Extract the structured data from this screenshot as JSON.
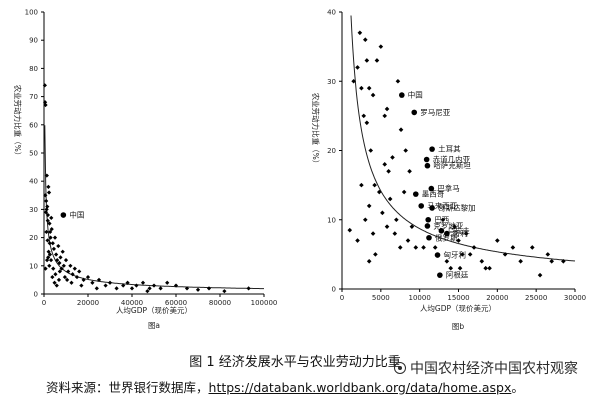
{
  "caption": "图 1  经济发展水平与农业劳动力比重",
  "source": {
    "prefix": "资料来源：世界银行数据库，",
    "url": "https://databank.worldbank.org/data/home.aspx",
    "suffix": "。"
  },
  "watermark": "中国农村经济中国农村观察",
  "chart_data": [
    {
      "type": "scatter",
      "panel": "图a",
      "xlabel": "人均GDP（现价美元）",
      "ylabel": "农业劳动力比重（%）",
      "xlim": [
        0,
        100000
      ],
      "ylim": [
        0,
        100
      ],
      "xticks": [
        "0",
        "20000",
        "40000",
        "60000",
        "80000",
        "100000"
      ],
      "yticks": [
        "0",
        "10",
        "20",
        "30",
        "40",
        "50",
        "60",
        "70",
        "80",
        "90",
        "100"
      ],
      "curve": {
        "type": "power",
        "a": 2400,
        "b": -0.62,
        "description": "fitted trend line"
      },
      "highlight": [
        {
          "label": "中国",
          "x": 8800,
          "y": 28
        }
      ],
      "points": [
        [
          400,
          74
        ],
        [
          500,
          68
        ],
        [
          700,
          67
        ],
        [
          900,
          29
        ],
        [
          600,
          35
        ],
        [
          1000,
          33
        ],
        [
          1200,
          30
        ],
        [
          1500,
          31
        ],
        [
          1800,
          28
        ],
        [
          1300,
          42
        ],
        [
          2000,
          38
        ],
        [
          2300,
          36
        ],
        [
          1700,
          26
        ],
        [
          2500,
          25
        ],
        [
          2800,
          22
        ],
        [
          3000,
          20
        ],
        [
          3500,
          23
        ],
        [
          4000,
          18
        ],
        [
          4500,
          16
        ],
        [
          5000,
          20
        ],
        [
          5500,
          14
        ],
        [
          6000,
          12
        ],
        [
          6500,
          17
        ],
        [
          7000,
          11
        ],
        [
          7500,
          13
        ],
        [
          8000,
          9
        ],
        [
          9000,
          10
        ],
        [
          10000,
          12
        ],
        [
          11000,
          8
        ],
        [
          12000,
          10
        ],
        [
          13000,
          7
        ],
        [
          14000,
          9
        ],
        [
          15000,
          6
        ],
        [
          16000,
          8
        ],
        [
          18000,
          5
        ],
        [
          20000,
          6
        ],
        [
          22000,
          4
        ],
        [
          25000,
          5
        ],
        [
          28000,
          3
        ],
        [
          30000,
          4
        ],
        [
          33000,
          2
        ],
        [
          36000,
          3
        ],
        [
          40000,
          2
        ],
        [
          42000,
          3
        ],
        [
          45000,
          4
        ],
        [
          48000,
          2
        ],
        [
          50000,
          3
        ],
        [
          53000,
          2
        ],
        [
          56000,
          4
        ],
        [
          60000,
          3
        ],
        [
          65000,
          2
        ],
        [
          70000,
          1.5
        ],
        [
          75000,
          2
        ],
        [
          82000,
          1
        ],
        [
          93000,
          2
        ],
        [
          3200,
          12
        ],
        [
          4200,
          9
        ],
        [
          2100,
          15
        ],
        [
          2600,
          18
        ],
        [
          3800,
          6
        ],
        [
          5200,
          7
        ],
        [
          6800,
          5
        ],
        [
          9500,
          6
        ],
        [
          1100,
          22
        ],
        [
          1600,
          19
        ],
        [
          2400,
          10
        ],
        [
          4800,
          4
        ],
        [
          7200,
          8
        ],
        [
          12500,
          4
        ],
        [
          17000,
          3
        ],
        [
          24000,
          2
        ],
        [
          38000,
          4
        ],
        [
          47000,
          1
        ],
        [
          8500,
          15
        ],
        [
          1900,
          13
        ],
        [
          3300,
          27
        ],
        [
          700,
          9
        ],
        [
          1400,
          12
        ],
        [
          2700,
          14
        ],
        [
          5800,
          3
        ],
        [
          10500,
          5
        ]
      ]
    },
    {
      "type": "scatter",
      "panel": "图b",
      "xlabel": "人均GDP（现价美元）",
      "ylabel": "农业劳动力比重（%）",
      "xlim": [
        0,
        30000
      ],
      "ylim": [
        0,
        40
      ],
      "xticks": [
        "0",
        "5000",
        "10000",
        "15000",
        "20000",
        "25000",
        "30000"
      ],
      "yticks": [
        "0",
        "10",
        "20",
        "30",
        "40"
      ],
      "curve": {
        "type": "power",
        "a": 5500,
        "b": -0.7,
        "description": "fitted trend line"
      },
      "highlight": [
        {
          "label": "中国",
          "x": 7700,
          "y": 28
        },
        {
          "label": "罗马尼亚",
          "x": 9300,
          "y": 25.5
        },
        {
          "label": "土耳其",
          "x": 11600,
          "y": 20.2
        },
        {
          "label": "赤道几内亚",
          "x": 10900,
          "y": 18.7
        },
        {
          "label": "哈萨克斯坦",
          "x": 11000,
          "y": 17.8
        },
        {
          "label": "墨西哥",
          "x": 9500,
          "y": 13.7
        },
        {
          "label": "巴拿马",
          "x": 11500,
          "y": 14.5
        },
        {
          "label": "马来西亚",
          "x": 10200,
          "y": 12.0
        },
        {
          "label": "哥斯达黎加",
          "x": 11600,
          "y": 11.7
        },
        {
          "label": "巴西",
          "x": 11100,
          "y": 10.0
        },
        {
          "label": "克罗地亚",
          "x": 11000,
          "y": 9.1
        },
        {
          "label": "乌拉圭",
          "x": 12800,
          "y": 8.4
        },
        {
          "label": "智利",
          "x": 13500,
          "y": 8.0
        },
        {
          "label": "俄罗斯",
          "x": 11200,
          "y": 7.4
        },
        {
          "label": "匈牙利",
          "x": 12300,
          "y": 4.9
        },
        {
          "label": "阿根廷",
          "x": 12600,
          "y": 2.0
        }
      ],
      "points": [
        [
          1000,
          8.5
        ],
        [
          1500,
          30
        ],
        [
          2000,
          32
        ],
        [
          2500,
          29
        ],
        [
          2300,
          37
        ],
        [
          3000,
          36
        ],
        [
          3200,
          33
        ],
        [
          3500,
          29
        ],
        [
          2800,
          25
        ],
        [
          4000,
          28
        ],
        [
          4500,
          33
        ],
        [
          5000,
          35
        ],
        [
          5500,
          25
        ],
        [
          3700,
          20
        ],
        [
          4200,
          15
        ],
        [
          2500,
          15
        ],
        [
          3000,
          10
        ],
        [
          3500,
          12
        ],
        [
          4000,
          8
        ],
        [
          4800,
          14
        ],
        [
          5200,
          11
        ],
        [
          5800,
          9
        ],
        [
          6200,
          13
        ],
        [
          6800,
          8
        ],
        [
          7000,
          10
        ],
        [
          7500,
          6
        ],
        [
          8000,
          14
        ],
        [
          8500,
          7
        ],
        [
          8700,
          17
        ],
        [
          3200,
          24
        ],
        [
          5500,
          18
        ],
        [
          6500,
          19
        ],
        [
          7200,
          30
        ],
        [
          8200,
          20
        ],
        [
          9000,
          9
        ],
        [
          9500,
          6
        ],
        [
          14500,
          9
        ],
        [
          15000,
          7
        ],
        [
          15500,
          5
        ],
        [
          16000,
          8
        ],
        [
          17000,
          6
        ],
        [
          18000,
          4
        ],
        [
          19000,
          3
        ],
        [
          20000,
          7
        ],
        [
          21000,
          5
        ],
        [
          22000,
          6
        ],
        [
          23000,
          4
        ],
        [
          24500,
          6
        ],
        [
          25500,
          2
        ],
        [
          26500,
          5
        ],
        [
          27000,
          4
        ],
        [
          28500,
          4
        ],
        [
          14000,
          3
        ],
        [
          16500,
          5
        ],
        [
          12000,
          6
        ],
        [
          13500,
          4
        ],
        [
          4300,
          5
        ],
        [
          2000,
          7
        ],
        [
          3500,
          4
        ],
        [
          6000,
          17
        ],
        [
          7600,
          23
        ],
        [
          10500,
          6
        ],
        [
          13000,
          10
        ],
        [
          15200,
          3
        ],
        [
          18500,
          3
        ],
        [
          5800,
          26
        ]
      ]
    }
  ]
}
